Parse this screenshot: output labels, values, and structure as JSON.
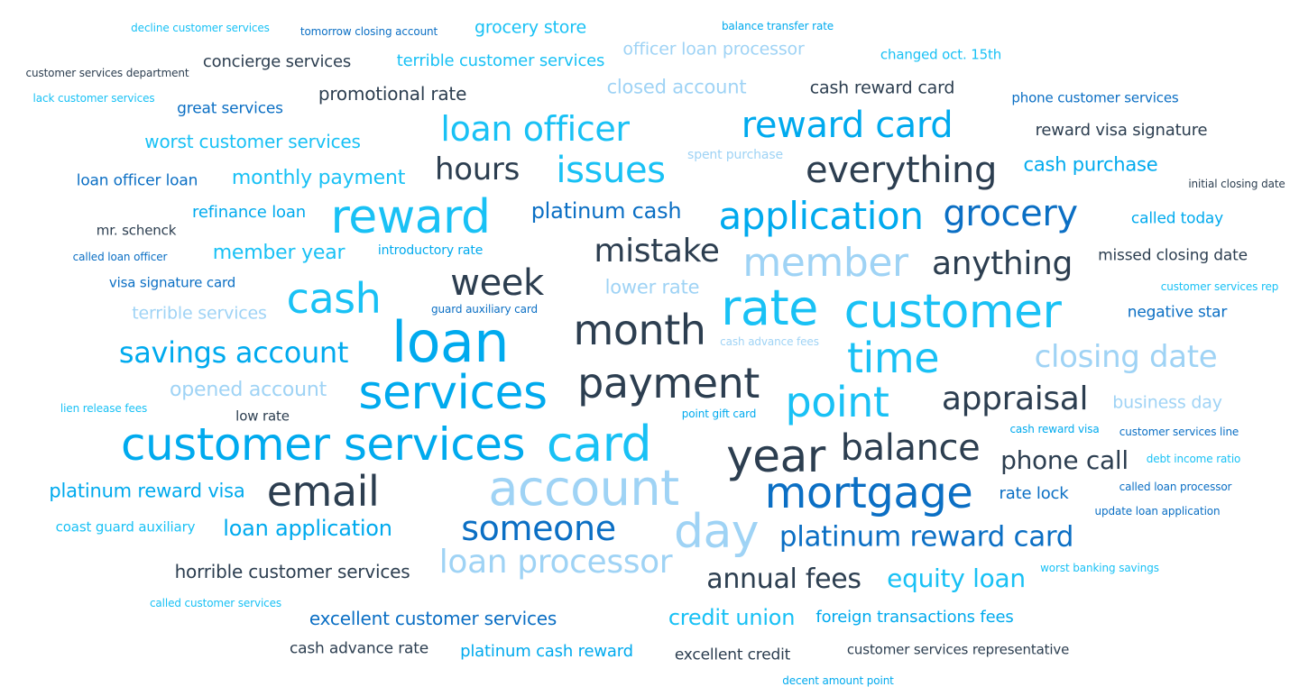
{
  "palette": {
    "navy": "#2c3e50",
    "blue": "#0b6fc4",
    "cyan": "#00aaee",
    "sky": "#19c1f5",
    "light": "#9fd3f5"
  },
  "words": [
    {
      "text": "decline customer services",
      "size": 12,
      "color": "sky"
    },
    {
      "text": "tomorrow closing account",
      "size": 12,
      "color": "blue"
    },
    {
      "text": "grocery store",
      "size": 19,
      "color": "sky"
    },
    {
      "text": "balance transfer rate",
      "size": 12,
      "color": "cyan"
    },
    {
      "text": "officer loan processor",
      "size": 19,
      "color": "light"
    },
    {
      "text": "customer services department",
      "size": 12,
      "color": "navy"
    },
    {
      "text": "concierge services",
      "size": 18,
      "color": "navy"
    },
    {
      "text": "terrible customer services",
      "size": 18,
      "color": "sky"
    },
    {
      "text": "changed oct. 15th",
      "size": 15,
      "color": "sky"
    },
    {
      "text": "lack customer services",
      "size": 12,
      "color": "sky"
    },
    {
      "text": "great services",
      "size": 17,
      "color": "blue"
    },
    {
      "text": "promotional rate",
      "size": 20,
      "color": "navy"
    },
    {
      "text": "closed account",
      "size": 21,
      "color": "light"
    },
    {
      "text": "cash reward card",
      "size": 19,
      "color": "navy"
    },
    {
      "text": "phone customer services",
      "size": 15,
      "color": "blue"
    },
    {
      "text": "loan officer",
      "size": 38,
      "color": "sky"
    },
    {
      "text": "reward card",
      "size": 40,
      "color": "cyan"
    },
    {
      "text": "reward visa signature",
      "size": 18,
      "color": "navy"
    },
    {
      "text": "worst customer services",
      "size": 20,
      "color": "sky"
    },
    {
      "text": "spent purchase",
      "size": 14,
      "color": "light"
    },
    {
      "text": "hours",
      "size": 34,
      "color": "navy"
    },
    {
      "text": "issues",
      "size": 40,
      "color": "sky"
    },
    {
      "text": "everything",
      "size": 40,
      "color": "navy"
    },
    {
      "text": "cash purchase",
      "size": 21,
      "color": "cyan"
    },
    {
      "text": "loan officer loan",
      "size": 17,
      "color": "blue"
    },
    {
      "text": "monthly payment",
      "size": 22,
      "color": "sky"
    },
    {
      "text": "initial closing date",
      "size": 12,
      "color": "navy"
    },
    {
      "text": "refinance loan",
      "size": 18,
      "color": "cyan"
    },
    {
      "text": "reward",
      "size": 52,
      "color": "sky"
    },
    {
      "text": "platinum cash",
      "size": 24,
      "color": "blue"
    },
    {
      "text": "application",
      "size": 42,
      "color": "cyan"
    },
    {
      "text": "grocery",
      "size": 40,
      "color": "blue"
    },
    {
      "text": "called today",
      "size": 17,
      "color": "cyan"
    },
    {
      "text": "mr. schenck",
      "size": 15,
      "color": "navy"
    },
    {
      "text": "member year",
      "size": 22,
      "color": "sky"
    },
    {
      "text": "introductory rate",
      "size": 14,
      "color": "cyan"
    },
    {
      "text": "mistake",
      "size": 36,
      "color": "navy"
    },
    {
      "text": "member",
      "size": 44,
      "color": "light"
    },
    {
      "text": "anything",
      "size": 36,
      "color": "navy"
    },
    {
      "text": "missed closing date",
      "size": 17,
      "color": "navy"
    },
    {
      "text": "called loan officer",
      "size": 12,
      "color": "blue"
    },
    {
      "text": "visa signature card",
      "size": 15,
      "color": "blue"
    },
    {
      "text": "cash",
      "size": 46,
      "color": "sky"
    },
    {
      "text": "week",
      "size": 40,
      "color": "navy"
    },
    {
      "text": "lower rate",
      "size": 21,
      "color": "light"
    },
    {
      "text": "rate",
      "size": 54,
      "color": "sky"
    },
    {
      "text": "customer",
      "size": 52,
      "color": "sky"
    },
    {
      "text": "customer services rep",
      "size": 12,
      "color": "sky"
    },
    {
      "text": "terrible services",
      "size": 19,
      "color": "light"
    },
    {
      "text": "guard auxiliary card",
      "size": 12,
      "color": "blue"
    },
    {
      "text": "negative star",
      "size": 17,
      "color": "blue"
    },
    {
      "text": "loan",
      "size": 62,
      "color": "cyan"
    },
    {
      "text": "month",
      "size": 46,
      "color": "navy"
    },
    {
      "text": "savings account",
      "size": 32,
      "color": "cyan"
    },
    {
      "text": "cash advance fees",
      "size": 12,
      "color": "light"
    },
    {
      "text": "time",
      "size": 46,
      "color": "sky"
    },
    {
      "text": "closing date",
      "size": 34,
      "color": "light"
    },
    {
      "text": "payment",
      "size": 46,
      "color": "navy"
    },
    {
      "text": "services",
      "size": 52,
      "color": "cyan"
    },
    {
      "text": "opened account",
      "size": 22,
      "color": "light"
    },
    {
      "text": "point",
      "size": 46,
      "color": "sky"
    },
    {
      "text": "appraisal",
      "size": 36,
      "color": "navy"
    },
    {
      "text": "business day",
      "size": 19,
      "color": "light"
    },
    {
      "text": "lien release fees",
      "size": 12,
      "color": "sky"
    },
    {
      "text": "low rate",
      "size": 15,
      "color": "navy"
    },
    {
      "text": "point gift card",
      "size": 12,
      "color": "cyan"
    },
    {
      "text": "cash reward visa",
      "size": 12,
      "color": "cyan"
    },
    {
      "text": "customer services line",
      "size": 12,
      "color": "blue"
    },
    {
      "text": "customer services",
      "size": 50,
      "color": "cyan"
    },
    {
      "text": "card",
      "size": 54,
      "color": "sky"
    },
    {
      "text": "year",
      "size": 50,
      "color": "navy"
    },
    {
      "text": "balance",
      "size": 40,
      "color": "navy"
    },
    {
      "text": "phone call",
      "size": 28,
      "color": "navy"
    },
    {
      "text": "debt income ratio",
      "size": 12,
      "color": "sky"
    },
    {
      "text": "platinum reward visa",
      "size": 21,
      "color": "cyan"
    },
    {
      "text": "email",
      "size": 46,
      "color": "navy"
    },
    {
      "text": "account",
      "size": 54,
      "color": "light"
    },
    {
      "text": "mortgage",
      "size": 48,
      "color": "blue"
    },
    {
      "text": "rate lock",
      "size": 18,
      "color": "blue"
    },
    {
      "text": "called loan processor",
      "size": 12,
      "color": "blue"
    },
    {
      "text": "update loan application",
      "size": 12,
      "color": "blue"
    },
    {
      "text": "coast guard auxiliary",
      "size": 15,
      "color": "sky"
    },
    {
      "text": "loan application",
      "size": 24,
      "color": "cyan"
    },
    {
      "text": "someone",
      "size": 38,
      "color": "blue"
    },
    {
      "text": "day",
      "size": 52,
      "color": "light"
    },
    {
      "text": "platinum reward card",
      "size": 31,
      "color": "blue"
    },
    {
      "text": "horrible customer services",
      "size": 20,
      "color": "navy"
    },
    {
      "text": "loan processor",
      "size": 36,
      "color": "light"
    },
    {
      "text": "annual fees",
      "size": 30,
      "color": "navy"
    },
    {
      "text": "equity loan",
      "size": 28,
      "color": "sky"
    },
    {
      "text": "worst banking savings",
      "size": 12,
      "color": "sky"
    },
    {
      "text": "called customer services",
      "size": 12,
      "color": "sky"
    },
    {
      "text": "excellent customer services",
      "size": 20,
      "color": "blue"
    },
    {
      "text": "credit union",
      "size": 24,
      "color": "sky"
    },
    {
      "text": "foreign transactions fees",
      "size": 18,
      "color": "cyan"
    },
    {
      "text": "cash advance rate",
      "size": 17,
      "color": "navy"
    },
    {
      "text": "platinum cash reward",
      "size": 18,
      "color": "cyan"
    },
    {
      "text": "excellent credit",
      "size": 17,
      "color": "navy"
    },
    {
      "text": "customer services representative",
      "size": 15,
      "color": "navy"
    },
    {
      "text": "decent amount point",
      "size": 12,
      "color": "cyan"
    }
  ]
}
